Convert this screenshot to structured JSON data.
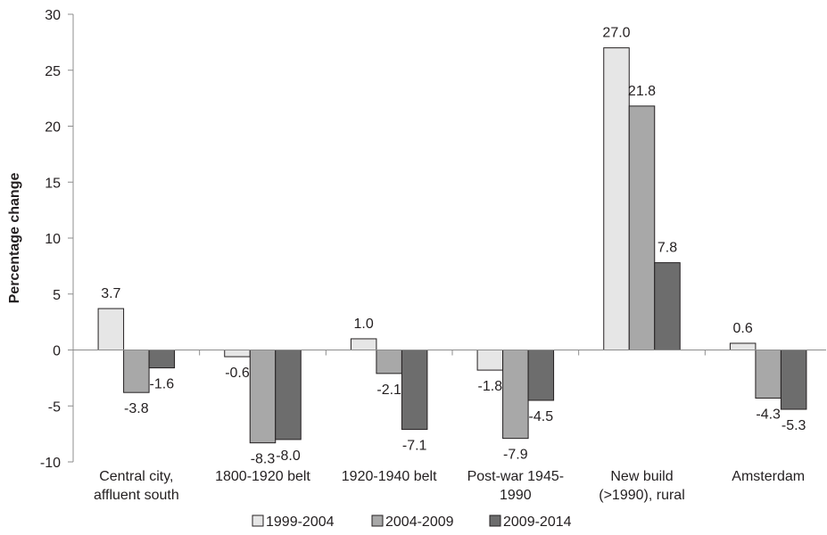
{
  "chart_data": {
    "type": "bar",
    "title": "",
    "xlabel": "",
    "ylabel": "Percentage change",
    "ylim": [
      -10,
      30
    ],
    "yticks": [
      30,
      25,
      20,
      15,
      10,
      5,
      0,
      -5,
      -10
    ],
    "grid": false,
    "legend_position": "bottom",
    "categories": [
      [
        "Central city,",
        "affluent south"
      ],
      [
        "1800-1920 belt"
      ],
      [
        "1920-1940 belt"
      ],
      [
        "Post-war 1945-",
        "1990"
      ],
      [
        "New build",
        "(>1990), rural"
      ],
      [
        "Amsterdam"
      ]
    ],
    "series": [
      {
        "name": "1999-2004",
        "color": "#e6e6e6",
        "values": [
          3.7,
          -0.6,
          1.0,
          -1.8,
          27.0,
          0.6
        ],
        "labels": [
          "3.7",
          "-0.6",
          "1.0",
          "-1.8",
          "27.0",
          "0.6"
        ]
      },
      {
        "name": "2004-2009",
        "color": "#a8a8a8",
        "values": [
          -3.8,
          -8.3,
          -2.1,
          -7.9,
          21.8,
          -4.3
        ],
        "labels": [
          "-3.8",
          "-8.3",
          "-2.1",
          "-7.9",
          "21.8",
          "-4.3"
        ]
      },
      {
        "name": "2009-2014",
        "color": "#6d6d6d",
        "values": [
          -1.6,
          -8.0,
          -7.1,
          -4.5,
          7.8,
          -5.3
        ],
        "labels": [
          "-1.6",
          "-8.0",
          "-7.1",
          "-4.5",
          "7.8",
          "-5.3"
        ]
      }
    ]
  }
}
